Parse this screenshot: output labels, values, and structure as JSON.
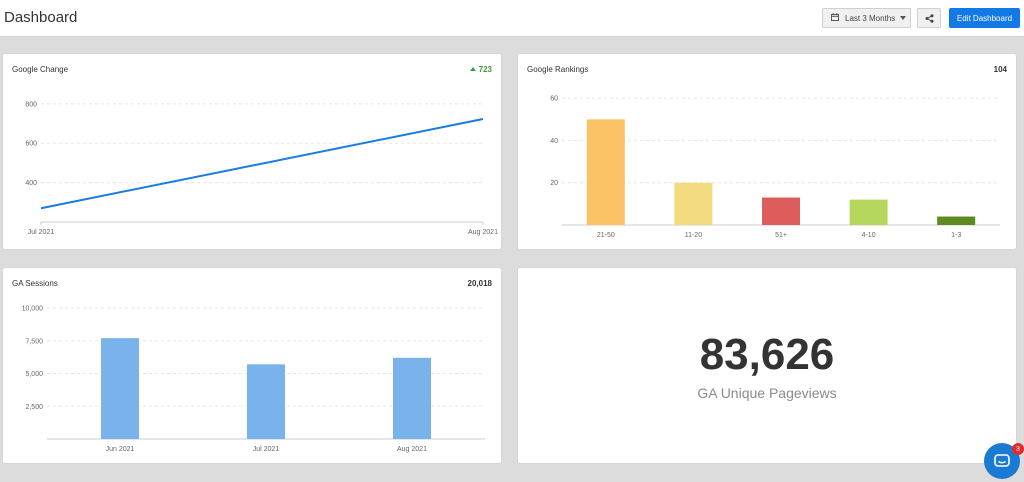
{
  "header": {
    "title": "Dashboard",
    "date_range_label": "Last 3 Months",
    "edit_label": "Edit Dashboard"
  },
  "colors": {
    "accent": "#1279e6"
  },
  "icons": {
    "range": "calendar-icon",
    "share": "share-icon",
    "chat": "chat-icon"
  },
  "cards": {
    "google_change": {
      "title": "Google Change",
      "value": "723"
    },
    "google_rankings": {
      "title": "Google Rankings",
      "value": "104"
    },
    "ga_sessions": {
      "title": "GA Sessions",
      "value": "20,018"
    },
    "ga_pageviews": {
      "value": "83,626",
      "label": "GA Unique Pageviews"
    }
  },
  "chat": {
    "badge_count": "3"
  },
  "chart_data": [
    {
      "type": "line",
      "x": [
        "Jul 2021",
        "Aug 2021"
      ],
      "y_ticks": [
        "400",
        "600",
        "800"
      ],
      "ylim": [
        200,
        850
      ],
      "grid": true,
      "series": [
        {
          "values": [
            270,
            723
          ],
          "color": "#1a7be0"
        }
      ]
    },
    {
      "type": "bar",
      "categories": [
        "21-50",
        "11-20",
        "51+",
        "4-10",
        "1-3"
      ],
      "values": [
        50,
        20,
        13,
        12,
        4
      ],
      "colors": [
        "#fbc266",
        "#f2da7e",
        "#dd5c5c",
        "#b5d65c",
        "#5f8a22"
      ],
      "y_ticks": [
        "20",
        "40",
        "60"
      ],
      "ylim": [
        0,
        62
      ],
      "grid": true
    },
    {
      "type": "bar",
      "categories": [
        "Jun 2021",
        "Jul 2021",
        "Aug 2021"
      ],
      "values": [
        7700,
        5700,
        6200
      ],
      "colors": [
        "#7ab3ec",
        "#7ab3ec",
        "#7ab3ec"
      ],
      "y_ticks": [
        "2,500",
        "5,000",
        "7,500",
        "10,000"
      ],
      "ylim": [
        0,
        10000
      ],
      "grid": true
    }
  ]
}
